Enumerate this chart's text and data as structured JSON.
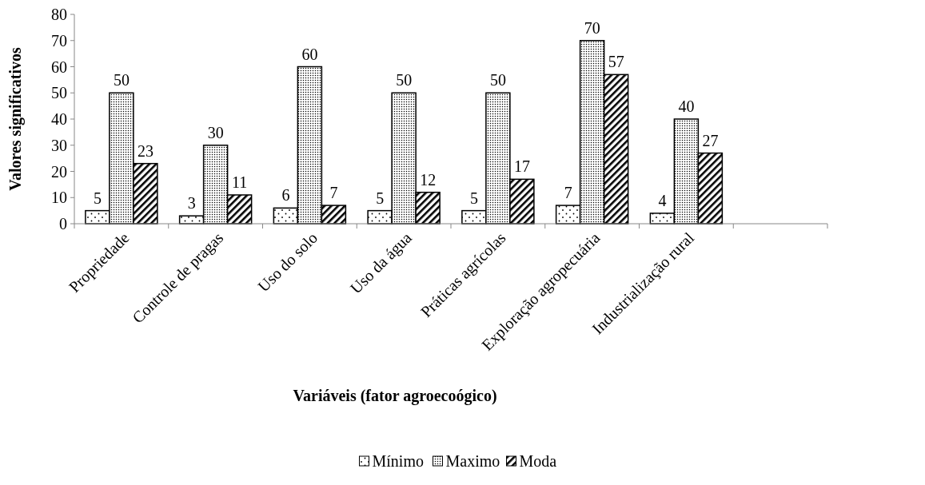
{
  "chart_data": {
    "type": "bar",
    "xlabel": "Variáveis (fator agroecoógico)",
    "ylabel": "Valores significativos",
    "categories": [
      "Propriedade",
      "Controle de pragas",
      "Uso do solo",
      "Uso da água",
      "Práticas agrícolas",
      "Exploração agropecuária",
      "Industrialização rural",
      null
    ],
    "series": [
      {
        "name": "Mínimo",
        "color": "#000000",
        "values": [
          5,
          3,
          6,
          5,
          5,
          7,
          4,
          null
        ]
      },
      {
        "name": "Maximo",
        "color": "#000000",
        "values": [
          50,
          30,
          60,
          50,
          50,
          70,
          40,
          null
        ]
      },
      {
        "name": "Moda",
        "color": "#000000",
        "values": [
          23,
          11,
          7,
          12,
          17,
          57,
          27,
          null
        ]
      }
    ],
    "ylim": [
      0,
      80
    ],
    "yticks": [
      0,
      10,
      20,
      30,
      40,
      50,
      60,
      70,
      80
    ],
    "data_labels": true,
    "legend": "bottom",
    "grid": false
  }
}
